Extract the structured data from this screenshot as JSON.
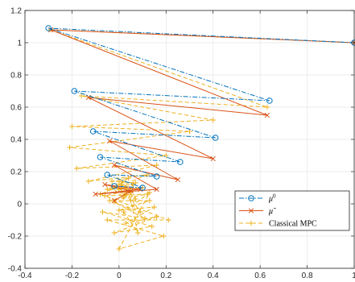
{
  "chart_data": {
    "type": "line",
    "title": "",
    "xlabel": "",
    "ylabel": "",
    "xlim": [
      -0.4,
      1.0
    ],
    "ylim": [
      -0.4,
      1.2
    ],
    "x_ticks": [
      -0.4,
      -0.2,
      0,
      0.2,
      0.4,
      0.6,
      0.8,
      1
    ],
    "x_tick_labels": [
      "-0.4",
      "-0.2",
      "0",
      "0.2",
      "0.4",
      "0.6",
      "0.8",
      "1"
    ],
    "y_ticks": [
      -0.4,
      -0.2,
      0,
      0.2,
      0.4,
      0.6,
      0.8,
      1,
      1.2
    ],
    "y_tick_labels": [
      "-0.4",
      "-0.2",
      "0",
      "0.2",
      "0.4",
      "0.6",
      "0.8",
      "1",
      "1.2"
    ],
    "grid": true,
    "legend_position": "lower-right",
    "series": [
      {
        "name": "μ⁰",
        "legend_label": "μ",
        "legend_sup": "0",
        "color": "#0072BD",
        "line_style": "dash-dot",
        "marker": "circle",
        "x": [
          1.0,
          -0.3,
          0.64,
          -0.19,
          0.41,
          -0.11,
          0.26,
          -0.08,
          0.16,
          -0.05,
          0.1,
          -0.02
        ],
        "y": [
          1.0,
          1.09,
          0.64,
          0.7,
          0.41,
          0.45,
          0.26,
          0.29,
          0.17,
          0.18,
          0.1,
          0.11
        ]
      },
      {
        "name": "μ̃",
        "legend_label": "μ̃",
        "color": "#D95319",
        "line_style": "solid",
        "marker": "x",
        "x": [
          1.0,
          -0.29,
          0.63,
          -0.13,
          0.4,
          -0.04,
          0.25,
          -0.02,
          0.16,
          -0.1,
          0.09,
          -0.06,
          0.05,
          -0.02
        ],
        "y": [
          1.0,
          1.08,
          0.55,
          0.66,
          0.28,
          0.39,
          0.15,
          0.24,
          0.09,
          0.06,
          0.09,
          0.12,
          0.08,
          0.02
        ]
      },
      {
        "name": "Classical MPC",
        "legend_label": "Classical MPC",
        "color": "#EDB120",
        "line_style": "dashed",
        "marker": "plus",
        "x": [
          1.0,
          -0.29,
          0.63,
          -0.16,
          0.4,
          -0.2,
          0.3,
          -0.21,
          0.2,
          -0.18,
          0.16,
          -0.13,
          0.12,
          -0.08,
          0.21,
          -0.05,
          0.19,
          0.0,
          0.13,
          0.02,
          0.08,
          0.05,
          0.0
        ],
        "y": [
          1.0,
          1.08,
          0.6,
          0.67,
          0.52,
          0.48,
          0.45,
          0.35,
          0.3,
          0.22,
          0.24,
          0.14,
          0.18,
          0.06,
          -0.1,
          -0.1,
          -0.2,
          -0.28,
          0.07,
          -0.05,
          -0.18,
          0.02,
          0.1
        ]
      }
    ],
    "extra_series": [
      {
        "name": "Classical MPC cluster",
        "color": "#EDB120",
        "line_style": "dashed",
        "marker": "plus",
        "x": [
          0.0,
          0.04,
          -0.03,
          0.07,
          -0.05,
          0.1,
          -0.06,
          0.12,
          -0.04,
          0.13,
          0.0,
          0.15,
          0.03,
          0.16,
          -0.02,
          0.14,
          -0.07,
          0.11,
          -0.02,
          0.09,
          0.03,
          0.07,
          0.01,
          0.05,
          -0.01,
          0.03,
          0.02,
          0.0,
          0.06,
          0.02,
          -0.03,
          0.05,
          0.01,
          0.03
        ],
        "y": [
          0.12,
          0.16,
          0.14,
          0.13,
          0.09,
          0.1,
          0.05,
          0.06,
          0.02,
          0.02,
          -0.04,
          -0.02,
          -0.12,
          -0.08,
          -0.18,
          -0.14,
          -0.05,
          -0.09,
          0.01,
          -0.05,
          0.08,
          0.03,
          0.12,
          0.08,
          0.11,
          0.06,
          0.05,
          0.09,
          0.12,
          0.04,
          0.1,
          0.07,
          0.14,
          0.1
        ]
      }
    ]
  }
}
